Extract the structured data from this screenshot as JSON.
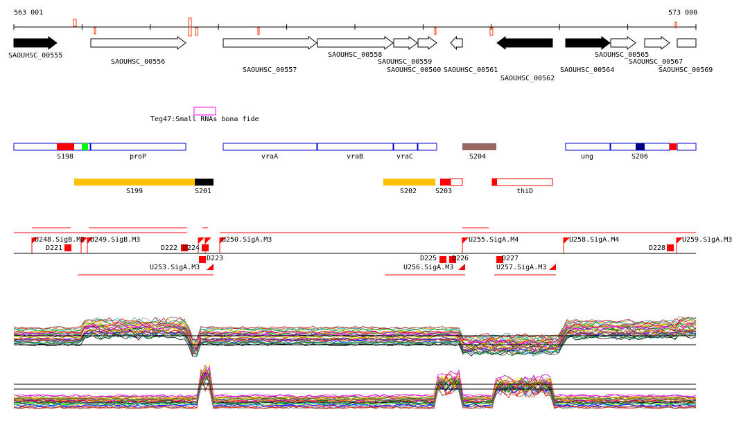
{
  "ruler": {
    "start": "563 001",
    "end": "573 000"
  },
  "genes": [
    "SAOUHSC_00555",
    "SAOUHSC_00556",
    "SAOUHSC_00557",
    "SAOUHSC_00558",
    "SAOUHSC_00559",
    "SAOUHSC_00560",
    "SAOUHSC_00561",
    "SAOUHSC_00562",
    "SAOUHSC_00564",
    "SAOUHSC_00565",
    "SAOUHSC_00567",
    "SAOUHSC_00569"
  ],
  "srna": {
    "label": "Teg47:Small RNAs bona fide",
    "color": "#ff00ff"
  },
  "features_row1": [
    "S198",
    "proP",
    "vraA",
    "vraB",
    "vraC",
    "S204",
    "ung",
    "S206"
  ],
  "features_row2": [
    "S199",
    "S201",
    "S202",
    "S203",
    "thiD"
  ],
  "tu_labels": [
    "U248.SigB.M2",
    "U249.SigB.M3",
    "D221",
    "D222",
    "D224",
    "U250.SigA.M3",
    "U253.SigA.M3",
    "D223",
    "U255.SigA.M4",
    "U256.SigA.M3",
    "D225",
    "D226",
    "D227",
    "U257.SigA.M3",
    "U258.SigA.M4",
    "D228",
    "U259.SigA.M3"
  ],
  "colors": {
    "tu": "#ff0000",
    "segment_gold": "#ffc000",
    "segment_brown": "#996666",
    "segment_navy": "#000080",
    "segment_green": "#00ff00",
    "gene_outline": "#0000cc"
  }
}
